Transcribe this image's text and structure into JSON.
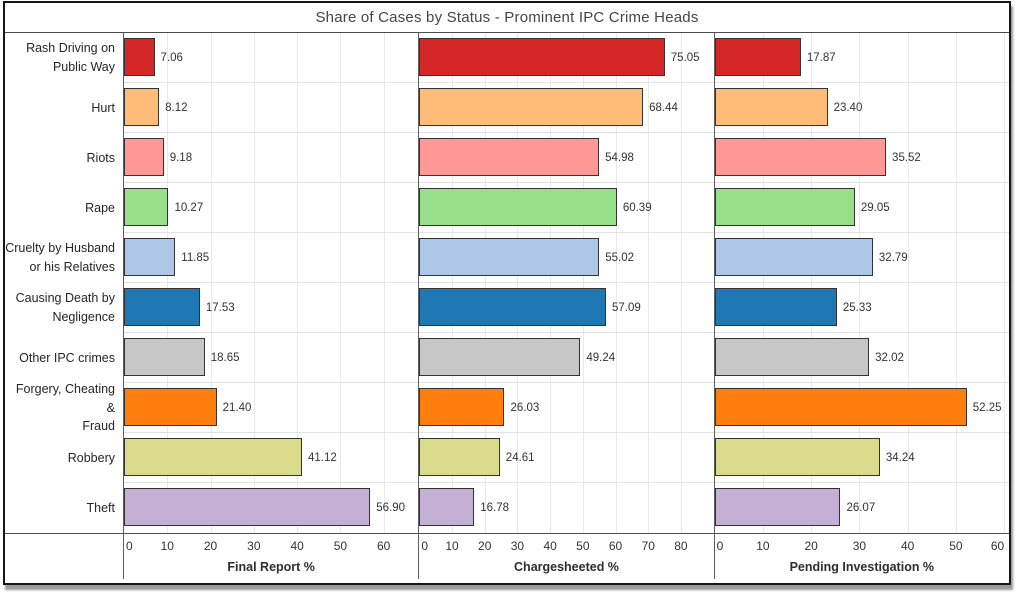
{
  "title": "Share of Cases by Status - Prominent IPC Crime Heads",
  "chart_data": {
    "type": "bar",
    "orientation": "horizontal",
    "title": "Share of Cases by Status - Prominent IPC Crime Heads",
    "grid": true,
    "value_labels": true,
    "categories": [
      "Rash Driving on\nPublic Way",
      "Hurt",
      "Riots",
      "Rape",
      "Cruelty by Husband\nor his Relatives",
      "Causing Death by\nNegligence",
      "Other IPC crimes",
      "Forgery, Cheating &\nFraud",
      "Robbery",
      "Theft"
    ],
    "bar_colors": [
      "#d62728",
      "#ffbb78",
      "#ff9896",
      "#98df8a",
      "#aec7e8",
      "#1f77b4",
      "#c7c7c7",
      "#ff7f0e",
      "#dbdb8d",
      "#c5b0d5"
    ],
    "bar_edge_color": "#333333",
    "panels": [
      {
        "axis_label": "Final Report %",
        "values": [
          7.06,
          8.12,
          9.18,
          10.27,
          11.85,
          17.53,
          18.65,
          21.4,
          41.12,
          56.9
        ],
        "xlim": [
          0,
          68
        ],
        "ticks": [
          0,
          10,
          20,
          30,
          40,
          50,
          60
        ]
      },
      {
        "axis_label": "Chargesheeted %",
        "values": [
          75.05,
          68.44,
          54.98,
          60.39,
          55.02,
          57.09,
          49.24,
          26.03,
          24.61,
          16.78
        ],
        "xlim": [
          0,
          90
        ],
        "ticks": [
          0,
          10,
          20,
          30,
          40,
          50,
          60,
          70,
          80
        ]
      },
      {
        "axis_label": "Pending Investigation %",
        "values": [
          17.87,
          23.4,
          35.52,
          29.05,
          32.79,
          25.33,
          32.02,
          52.25,
          34.24,
          26.07
        ],
        "xlim": [
          0,
          61
        ],
        "ticks": [
          0,
          10,
          20,
          30,
          40,
          50,
          60
        ]
      }
    ]
  }
}
